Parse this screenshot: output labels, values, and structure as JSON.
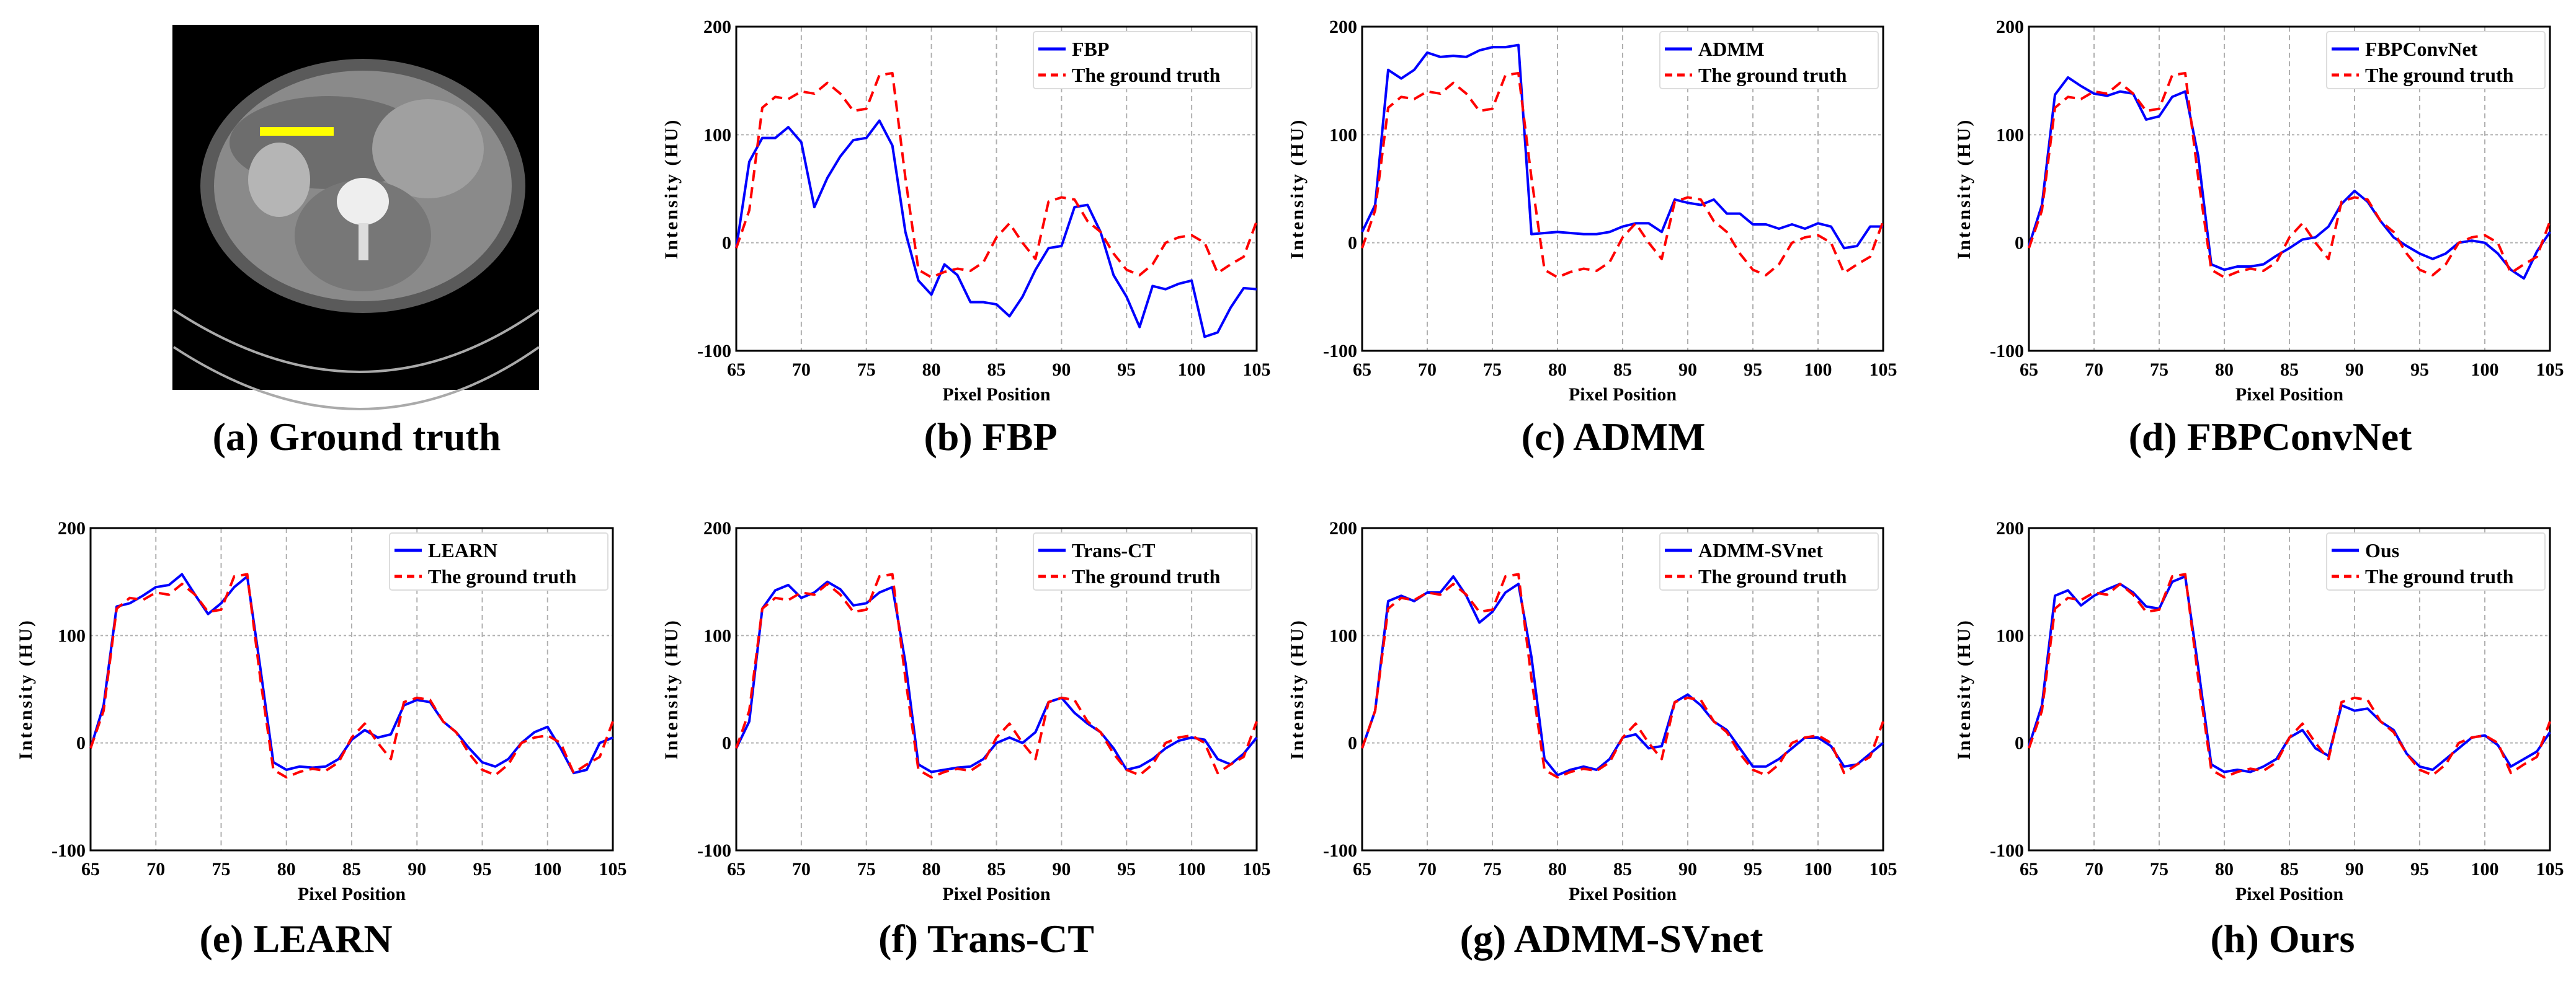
{
  "captions": {
    "a": "(a) Ground truth",
    "b": "(b) FBP",
    "c": "(c) ADMM",
    "d": "(d) FBPConvNet",
    "e": "(e) LEARN",
    "f": "(f) Trans-CT",
    "g": "(g) ADMM-SVnet",
    "h": "(h) Ours"
  },
  "colors": {
    "method": "#0000ff",
    "ground_truth": "#ff0000",
    "marker_line": "#ffff00"
  },
  "chart_data": [
    {
      "id": "b",
      "type": "line",
      "xlabel": "Pixel Position",
      "ylabel": "Intensity (HU)",
      "xlim": [
        65,
        105
      ],
      "ylim": [
        -100,
        200
      ],
      "xticks": [
        65,
        70,
        75,
        80,
        85,
        90,
        95,
        100,
        105
      ],
      "yticks": [
        -100,
        0,
        100,
        200
      ],
      "grid": true,
      "legend": "top-right",
      "x": [
        65,
        66,
        67,
        68,
        69,
        70,
        71,
        72,
        73,
        74,
        75,
        76,
        77,
        78,
        79,
        80,
        81,
        82,
        83,
        84,
        85,
        86,
        87,
        88,
        89,
        90,
        91,
        92,
        93,
        94,
        95,
        96,
        97,
        98,
        99,
        100,
        101,
        102,
        103,
        104,
        105
      ],
      "series": [
        {
          "name": "FBP",
          "style": "solid",
          "values": [
            -5,
            75,
            97,
            97,
            107,
            93,
            33,
            60,
            80,
            95,
            97,
            113,
            90,
            10,
            -35,
            -48,
            -20,
            -30,
            -55,
            -55,
            -57,
            -68,
            -50,
            -25,
            -5,
            -3,
            33,
            35,
            10,
            -30,
            -50,
            -78,
            -40,
            -43,
            -38,
            -35,
            -87,
            -83,
            -60,
            -42,
            -43
          ]
        },
        {
          "name": "The ground truth",
          "style": "dashed",
          "values": [
            -5,
            30,
            125,
            135,
            133,
            140,
            138,
            148,
            138,
            122,
            124,
            155,
            157,
            60,
            -25,
            -32,
            -27,
            -24,
            -26,
            -18,
            5,
            18,
            0,
            -15,
            38,
            42,
            40,
            20,
            10,
            -10,
            -25,
            -30,
            -20,
            0,
            5,
            7,
            0,
            -28,
            -20,
            -13,
            20
          ]
        }
      ]
    },
    {
      "id": "c",
      "type": "line",
      "xlabel": "Pixel Position",
      "ylabel": "Intensity (HU)",
      "xlim": [
        65,
        105
      ],
      "ylim": [
        -100,
        200
      ],
      "xticks": [
        65,
        70,
        75,
        80,
        85,
        90,
        95,
        100,
        105
      ],
      "yticks": [
        -100,
        0,
        100,
        200
      ],
      "grid": true,
      "legend": "top-right",
      "x": [
        65,
        66,
        67,
        68,
        69,
        70,
        71,
        72,
        73,
        74,
        75,
        76,
        77,
        78,
        79,
        80,
        81,
        82,
        83,
        84,
        85,
        86,
        87,
        88,
        89,
        90,
        91,
        92,
        93,
        94,
        95,
        96,
        97,
        98,
        99,
        100,
        101,
        102,
        103,
        104,
        105
      ],
      "series": [
        {
          "name": "ADMM",
          "style": "solid",
          "values": [
            10,
            35,
            160,
            152,
            160,
            176,
            172,
            173,
            172,
            178,
            181,
            181,
            183,
            8,
            9,
            10,
            9,
            8,
            8,
            10,
            15,
            18,
            18,
            10,
            40,
            37,
            35,
            40,
            27,
            27,
            17,
            17,
            13,
            17,
            13,
            18,
            15,
            -5,
            -3,
            15,
            15
          ]
        },
        {
          "name": "The ground truth",
          "style": "dashed",
          "values": [
            -5,
            30,
            125,
            135,
            133,
            140,
            138,
            148,
            138,
            122,
            124,
            155,
            157,
            60,
            -25,
            -32,
            -27,
            -24,
            -26,
            -18,
            5,
            18,
            0,
            -15,
            38,
            42,
            40,
            20,
            10,
            -10,
            -25,
            -30,
            -20,
            0,
            5,
            7,
            0,
            -28,
            -20,
            -13,
            20
          ]
        }
      ]
    },
    {
      "id": "d",
      "type": "line",
      "xlabel": "Pixel Position",
      "ylabel": "Intensity (HU)",
      "xlim": [
        65,
        105
      ],
      "ylim": [
        -100,
        200
      ],
      "xticks": [
        65,
        70,
        75,
        80,
        85,
        90,
        95,
        100,
        105
      ],
      "yticks": [
        -100,
        0,
        100,
        200
      ],
      "grid": true,
      "legend": "top-right",
      "x": [
        65,
        66,
        67,
        68,
        69,
        70,
        71,
        72,
        73,
        74,
        75,
        76,
        77,
        78,
        79,
        80,
        81,
        82,
        83,
        84,
        85,
        86,
        87,
        88,
        89,
        90,
        91,
        92,
        93,
        94,
        95,
        96,
        97,
        98,
        99,
        100,
        101,
        102,
        103,
        104,
        105
      ],
      "series": [
        {
          "name": "FBPConvNet",
          "style": "solid",
          "values": [
            -3,
            35,
            137,
            153,
            145,
            138,
            136,
            140,
            138,
            114,
            117,
            135,
            140,
            80,
            -20,
            -25,
            -22,
            -22,
            -20,
            -12,
            -5,
            3,
            5,
            15,
            36,
            48,
            38,
            20,
            5,
            -3,
            -10,
            -15,
            -10,
            0,
            2,
            0,
            -10,
            -25,
            -33,
            -8,
            10
          ]
        },
        {
          "name": "The ground truth",
          "style": "dashed",
          "values": [
            -5,
            30,
            125,
            135,
            133,
            140,
            138,
            148,
            138,
            122,
            124,
            155,
            157,
            60,
            -25,
            -32,
            -27,
            -24,
            -26,
            -18,
            5,
            18,
            0,
            -15,
            38,
            42,
            40,
            20,
            10,
            -10,
            -25,
            -30,
            -20,
            0,
            5,
            7,
            0,
            -28,
            -20,
            -13,
            20
          ]
        }
      ]
    },
    {
      "id": "e",
      "type": "line",
      "xlabel": "Pixel Position",
      "ylabel": "Intensity (HU)",
      "xlim": [
        65,
        105
      ],
      "ylim": [
        -100,
        200
      ],
      "xticks": [
        65,
        70,
        75,
        80,
        85,
        90,
        95,
        100,
        105
      ],
      "yticks": [
        -100,
        0,
        100,
        200
      ],
      "grid": true,
      "legend": "top-right",
      "x": [
        65,
        66,
        67,
        68,
        69,
        70,
        71,
        72,
        73,
        74,
        75,
        76,
        77,
        78,
        79,
        80,
        81,
        82,
        83,
        84,
        85,
        86,
        87,
        88,
        89,
        90,
        91,
        92,
        93,
        94,
        95,
        96,
        97,
        98,
        99,
        100,
        101,
        102,
        103,
        104,
        105
      ],
      "series": [
        {
          "name": "LEARN",
          "style": "solid",
          "values": [
            -5,
            35,
            127,
            130,
            137,
            145,
            147,
            157,
            138,
            120,
            130,
            145,
            155,
            70,
            -18,
            -25,
            -22,
            -23,
            -22,
            -15,
            3,
            12,
            5,
            8,
            35,
            40,
            38,
            20,
            10,
            -5,
            -18,
            -22,
            -15,
            0,
            10,
            15,
            -5,
            -28,
            -25,
            0,
            5
          ]
        },
        {
          "name": "The ground truth",
          "style": "dashed",
          "values": [
            -5,
            30,
            125,
            135,
            133,
            140,
            138,
            148,
            138,
            122,
            124,
            155,
            157,
            60,
            -25,
            -32,
            -27,
            -24,
            -26,
            -18,
            5,
            18,
            0,
            -15,
            38,
            42,
            40,
            20,
            10,
            -10,
            -25,
            -30,
            -20,
            0,
            5,
            7,
            0,
            -28,
            -20,
            -13,
            20
          ]
        }
      ]
    },
    {
      "id": "f",
      "type": "line",
      "xlabel": "Pixel Position",
      "ylabel": "Intensity (HU)",
      "xlim": [
        65,
        105
      ],
      "ylim": [
        -100,
        200
      ],
      "xticks": [
        65,
        70,
        75,
        80,
        85,
        90,
        95,
        100,
        105
      ],
      "yticks": [
        -100,
        0,
        100,
        200
      ],
      "grid": true,
      "legend": "top-right",
      "x": [
        65,
        66,
        67,
        68,
        69,
        70,
        71,
        72,
        73,
        74,
        75,
        76,
        77,
        78,
        79,
        80,
        81,
        82,
        83,
        84,
        85,
        86,
        87,
        88,
        89,
        90,
        91,
        92,
        93,
        94,
        95,
        96,
        97,
        98,
        99,
        100,
        101,
        102,
        103,
        104,
        105
      ],
      "series": [
        {
          "name": "Trans-CT",
          "style": "solid",
          "values": [
            -5,
            20,
            125,
            142,
            147,
            135,
            140,
            150,
            143,
            128,
            130,
            140,
            145,
            75,
            -20,
            -27,
            -25,
            -23,
            -22,
            -15,
            0,
            5,
            0,
            10,
            38,
            42,
            28,
            18,
            10,
            -5,
            -25,
            -22,
            -15,
            -5,
            2,
            5,
            3,
            -15,
            -20,
            -10,
            5
          ]
        },
        {
          "name": "The ground truth",
          "style": "dashed",
          "values": [
            -5,
            30,
            125,
            135,
            133,
            140,
            138,
            148,
            138,
            122,
            124,
            155,
            157,
            60,
            -25,
            -32,
            -27,
            -24,
            -26,
            -18,
            5,
            18,
            0,
            -15,
            38,
            42,
            40,
            20,
            10,
            -10,
            -25,
            -30,
            -20,
            0,
            5,
            7,
            0,
            -28,
            -20,
            -13,
            20
          ]
        }
      ]
    },
    {
      "id": "g",
      "type": "line",
      "xlabel": "Pixel Position",
      "ylabel": "Intensity (HU)",
      "xlim": [
        65,
        105
      ],
      "ylim": [
        -100,
        200
      ],
      "xticks": [
        65,
        70,
        75,
        80,
        85,
        90,
        95,
        100,
        105
      ],
      "yticks": [
        -100,
        0,
        100,
        200
      ],
      "grid": true,
      "legend": "top-right",
      "x": [
        65,
        66,
        67,
        68,
        69,
        70,
        71,
        72,
        73,
        74,
        75,
        76,
        77,
        78,
        79,
        80,
        81,
        82,
        83,
        84,
        85,
        86,
        87,
        88,
        89,
        90,
        91,
        92,
        93,
        94,
        95,
        96,
        97,
        98,
        99,
        100,
        101,
        102,
        103,
        104,
        105
      ],
      "series": [
        {
          "name": "ADMM-SVnet",
          "style": "solid",
          "values": [
            -5,
            30,
            132,
            137,
            132,
            140,
            140,
            155,
            137,
            112,
            122,
            140,
            148,
            80,
            -15,
            -30,
            -25,
            -22,
            -25,
            -15,
            5,
            8,
            -5,
            -3,
            38,
            45,
            35,
            20,
            12,
            -5,
            -22,
            -22,
            -15,
            -5,
            5,
            5,
            -3,
            -22,
            -20,
            -10,
            0
          ]
        },
        {
          "name": "The ground truth",
          "style": "dashed",
          "values": [
            -5,
            30,
            125,
            135,
            133,
            140,
            138,
            148,
            138,
            122,
            124,
            155,
            157,
            60,
            -25,
            -32,
            -27,
            -24,
            -26,
            -18,
            5,
            18,
            0,
            -15,
            38,
            42,
            40,
            20,
            10,
            -10,
            -25,
            -30,
            -20,
            0,
            5,
            7,
            0,
            -28,
            -20,
            -13,
            20
          ]
        }
      ]
    },
    {
      "id": "h",
      "type": "line",
      "xlabel": "Pixel Position",
      "ylabel": "Intensity (HU)",
      "xlim": [
        65,
        105
      ],
      "ylim": [
        -100,
        200
      ],
      "xticks": [
        65,
        70,
        75,
        80,
        85,
        90,
        95,
        100,
        105
      ],
      "yticks": [
        -100,
        0,
        100,
        200
      ],
      "grid": true,
      "legend": "top-right",
      "x": [
        65,
        66,
        67,
        68,
        69,
        70,
        71,
        72,
        73,
        74,
        75,
        76,
        77,
        78,
        79,
        80,
        81,
        82,
        83,
        84,
        85,
        86,
        87,
        88,
        89,
        90,
        91,
        92,
        93,
        94,
        95,
        96,
        97,
        98,
        99,
        100,
        101,
        102,
        103,
        104,
        105
      ],
      "series": [
        {
          "name": "Ous",
          "style": "solid",
          "values": [
            -3,
            35,
            137,
            142,
            128,
            137,
            143,
            148,
            140,
            127,
            125,
            150,
            155,
            70,
            -20,
            -27,
            -25,
            -27,
            -22,
            -15,
            5,
            12,
            -5,
            -12,
            35,
            30,
            32,
            20,
            12,
            -10,
            -22,
            -25,
            -15,
            -5,
            5,
            7,
            -2,
            -22,
            -15,
            -8,
            10
          ]
        },
        {
          "name": "The ground truth",
          "style": "dashed",
          "values": [
            -5,
            30,
            125,
            135,
            133,
            140,
            138,
            148,
            138,
            122,
            124,
            155,
            157,
            60,
            -25,
            -32,
            -27,
            -24,
            -26,
            -18,
            5,
            18,
            0,
            -15,
            38,
            42,
            40,
            20,
            10,
            -10,
            -25,
            -30,
            -20,
            0,
            5,
            7,
            0,
            -28,
            -20,
            -13,
            20
          ]
        }
      ]
    }
  ]
}
